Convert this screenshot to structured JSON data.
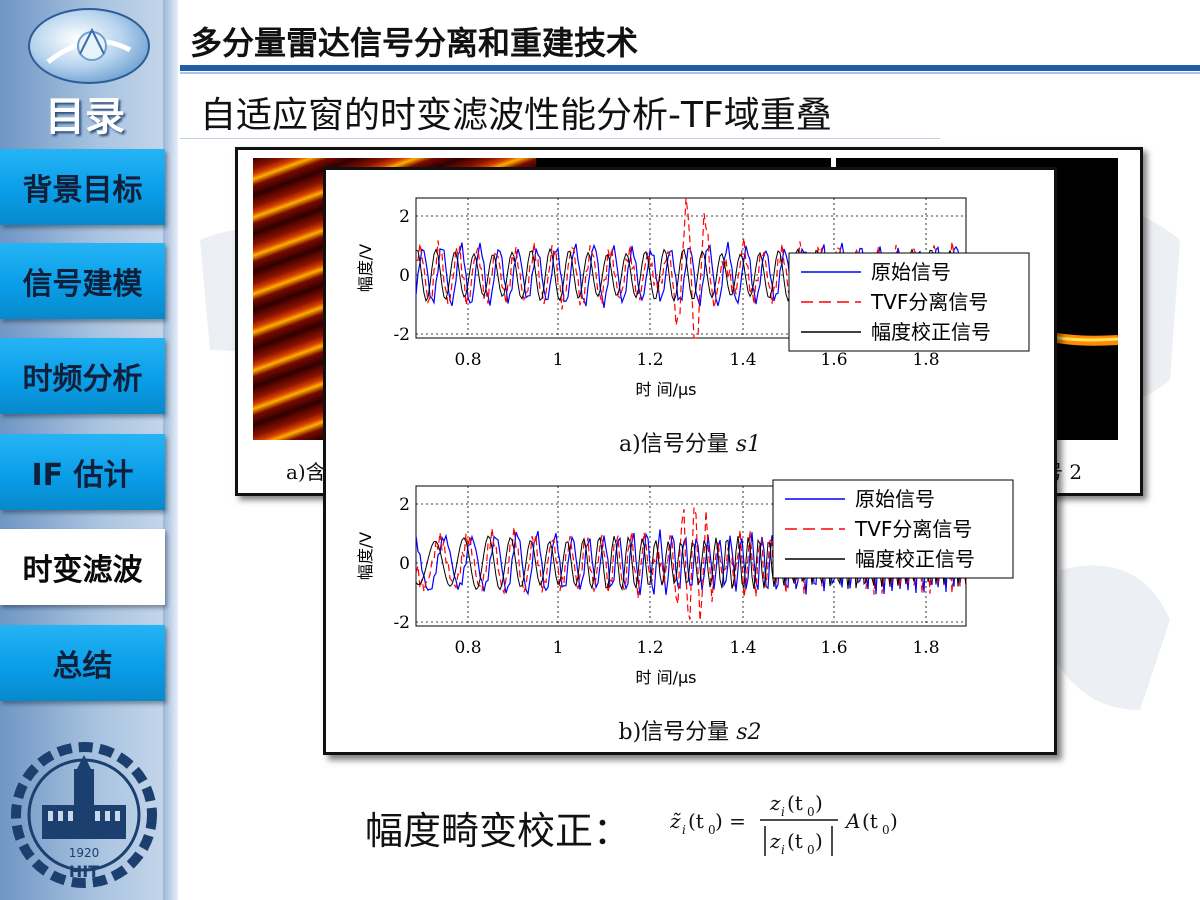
{
  "sidebar": {
    "toc_title": "目录",
    "items": [
      {
        "label": "背景目标",
        "active": false
      },
      {
        "label": "信号建模",
        "active": false
      },
      {
        "label": "时频分析",
        "active": false
      },
      {
        "label": "IF 估计",
        "active": false
      },
      {
        "label": "时变滤波",
        "active": true
      },
      {
        "label": "总结",
        "active": false
      }
    ],
    "seal_year": "1920",
    "seal_text": "HIT"
  },
  "header": {
    "title": "多分量雷达信号分离和重建技术",
    "subtitle": "自适应窗的时变滤波性能分析-TF域重叠"
  },
  "back_figure": {
    "caption_left": "a)含",
    "caption_right": "号 2"
  },
  "figures": [
    {
      "caption_prefix": "a)信号分量",
      "caption_var": "s1",
      "ylabel": "幅度/V",
      "xlabel": "时 间/μs",
      "xticks": [
        "0.8",
        "1",
        "1.2",
        "1.4",
        "1.6",
        "1.8"
      ],
      "yticks": [
        "2",
        "0",
        "-2"
      ],
      "legend": [
        "原始信号",
        "TVF分离信号",
        "幅度校正信号"
      ]
    },
    {
      "caption_prefix": "b)信号分量",
      "caption_var": "s2",
      "ylabel": "幅度/V",
      "xlabel": "时 间/μs",
      "xticks": [
        "0.8",
        "1",
        "1.2",
        "1.4",
        "1.6",
        "1.8"
      ],
      "yticks": [
        "2",
        "0",
        "-2"
      ],
      "legend": [
        "原始信号",
        "TVF分离信号",
        "幅度校正信号"
      ]
    }
  ],
  "formula": {
    "label": "幅度畸变校正："
  },
  "colors": {
    "accent": "#1f5fa8",
    "nav": "#0a9ee8",
    "original": "#0000ff",
    "tvf": "#ff0000",
    "corrected": "#000000"
  }
}
